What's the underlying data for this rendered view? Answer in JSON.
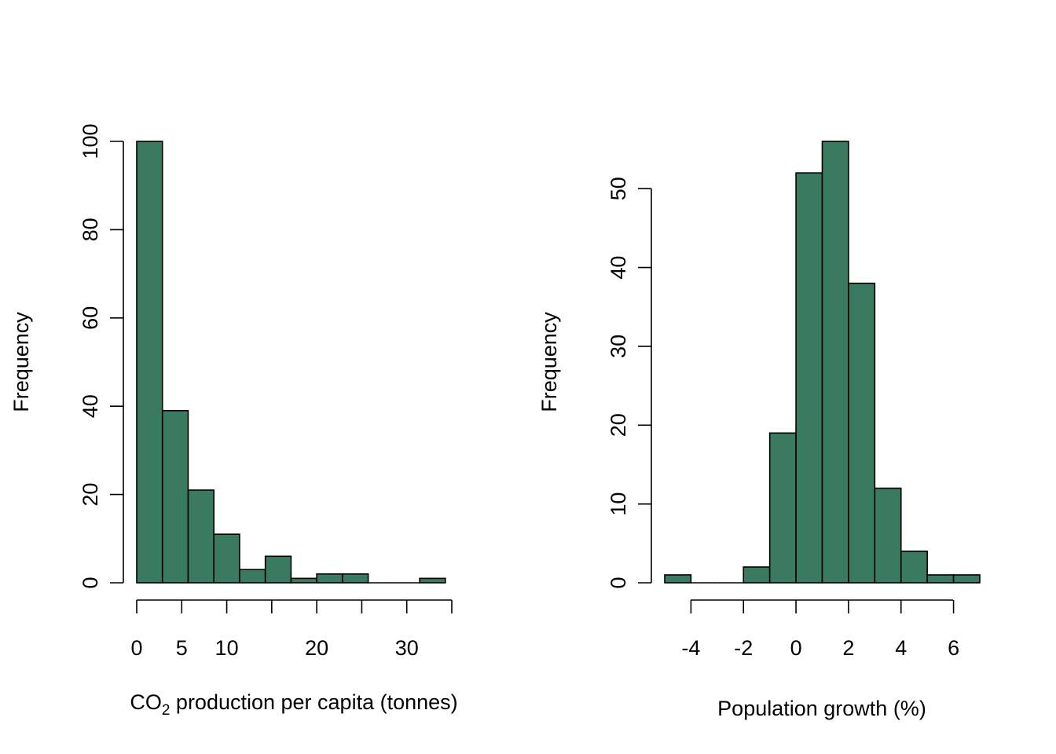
{
  "chart_data": [
    {
      "type": "bar",
      "subtype": "histogram",
      "bar_color": "#3a7a61",
      "bin_width": 2.857,
      "bin_edges": [
        0,
        2.857,
        5.714,
        8.571,
        11.429,
        14.286,
        17.143,
        20.0,
        22.857,
        25.714,
        28.571,
        31.429,
        34.286
      ],
      "values": [
        100,
        39,
        21,
        11,
        3,
        6,
        1,
        2,
        2,
        0,
        0,
        1
      ],
      "xlabel_main": "CO",
      "xlabel_sub": "2",
      "xlabel_rest": " production per capita (tonnes)",
      "ylabel": "Frequency",
      "xlim": [
        0,
        35
      ],
      "ylim": [
        0,
        100
      ],
      "xticks": [
        0,
        5,
        10,
        15,
        20,
        25,
        30,
        35
      ],
      "xtick_labels": [
        "0",
        "5",
        "10",
        "",
        "20",
        "",
        "30",
        ""
      ],
      "yticks": [
        0,
        20,
        40,
        60,
        80,
        100
      ],
      "ytick_labels": [
        "0",
        "20",
        "40",
        "60",
        "80",
        "100"
      ],
      "grid": false
    },
    {
      "type": "bar",
      "subtype": "histogram",
      "bar_color": "#3a7a61",
      "bin_width": 1,
      "bin_edges": [
        -5,
        -4,
        -3,
        -2,
        -1,
        0,
        1,
        2,
        3,
        4,
        5,
        6,
        7
      ],
      "values": [
        1,
        0,
        0,
        2,
        19,
        52,
        56,
        38,
        12,
        4,
        1,
        1
      ],
      "xlabel": "Population growth (%)",
      "ylabel": "Frequency",
      "xlim": [
        -5,
        7
      ],
      "ylim": [
        0,
        56
      ],
      "xticks": [
        -4,
        -2,
        0,
        2,
        4,
        6
      ],
      "xtick_labels": [
        "-4",
        "-2",
        "0",
        "2",
        "4",
        "6"
      ],
      "yticks": [
        0,
        10,
        20,
        30,
        40,
        50
      ],
      "ytick_labels": [
        "0",
        "10",
        "20",
        "30",
        "40",
        "50"
      ],
      "grid": false
    }
  ]
}
